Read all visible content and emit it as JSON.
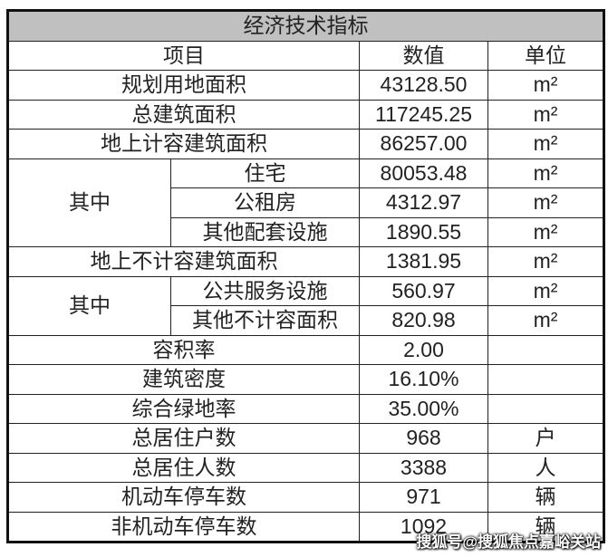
{
  "title": "经济技术指标",
  "headers": {
    "item": "项目",
    "value": "数值",
    "unit": "单位"
  },
  "rows": [
    {
      "item": "规划用地面积",
      "value": "43128.50",
      "unit": "m²"
    },
    {
      "item": "总建筑面积",
      "value": "117245.25",
      "unit": "m²"
    },
    {
      "item": "地上计容建筑面积",
      "value": "86257.00",
      "unit": "m²"
    },
    {
      "group": "其中",
      "item": "住宅",
      "value": "80053.48",
      "unit": "m²"
    },
    {
      "item": "公租房",
      "value": "4312.97",
      "unit": "m²"
    },
    {
      "item": "其他配套设施",
      "value": "1890.55",
      "unit": "m²"
    },
    {
      "item": "地上不计容建筑面积",
      "value": "1381.95",
      "unit": "m²"
    },
    {
      "group": "其中",
      "item": "公共服务设施",
      "value": "560.97",
      "unit": "m²"
    },
    {
      "item": "其他不计容面积",
      "value": "820.98",
      "unit": "m²"
    },
    {
      "item": "容积率",
      "value": "2.00",
      "unit": ""
    },
    {
      "item": "建筑密度",
      "value": "16.10%",
      "unit": ""
    },
    {
      "item": "综合绿地率",
      "value": "35.00%",
      "unit": ""
    },
    {
      "item": "总居住户数",
      "value": "968",
      "unit": "户"
    },
    {
      "item": "总居住人数",
      "value": "3388",
      "unit": "人"
    },
    {
      "item": "机动车停车数",
      "value": "971",
      "unit": "辆"
    },
    {
      "item": "非机动车停车数",
      "value": "1092",
      "unit": "辆"
    }
  ],
  "watermark": "搜狐号@搜狐焦点嘉峪关站"
}
